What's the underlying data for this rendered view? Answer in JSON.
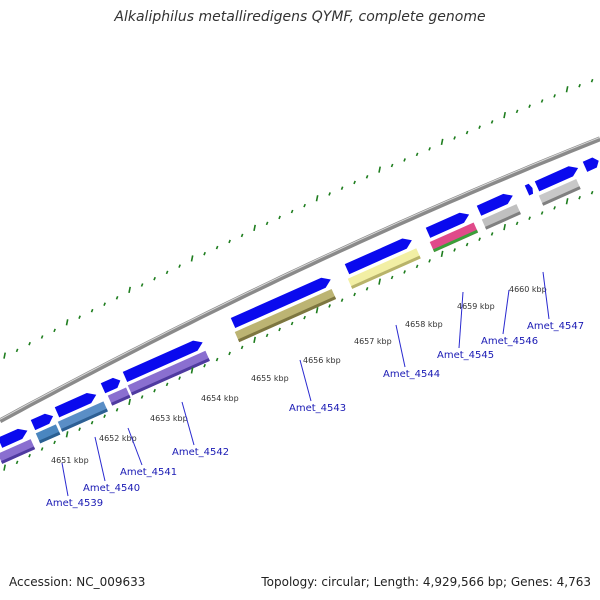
{
  "title": "Alkaliphilus metalliredigens QYMF, complete genome",
  "accession": "Accession: NC_009633",
  "stats": "Topology: circular; Length: 4,929,566 bp; Genes: 4,763",
  "colors": {
    "backbone": "#8a8a8a",
    "forward_gene": "#0a0aee",
    "tick": "#1e7d1e",
    "label_line": "#2a2ad0",
    "label_text": "#1a1ab4"
  },
  "kbp_ticks": [
    "4651 kbp",
    "4652 kbp",
    "4653 kbp",
    "4654 kbp",
    "4655 kbp",
    "4656 kbp",
    "4657 kbp",
    "4658 kbp",
    "4659 kbp",
    "4660 kbp"
  ],
  "gene_labels": [
    "Amet_4539",
    "Amet_4540",
    "Amet_4541",
    "Amet_4542",
    "Amet_4543",
    "Amet_4544",
    "Amet_4545",
    "Amet_4546",
    "Amet_4547"
  ]
}
